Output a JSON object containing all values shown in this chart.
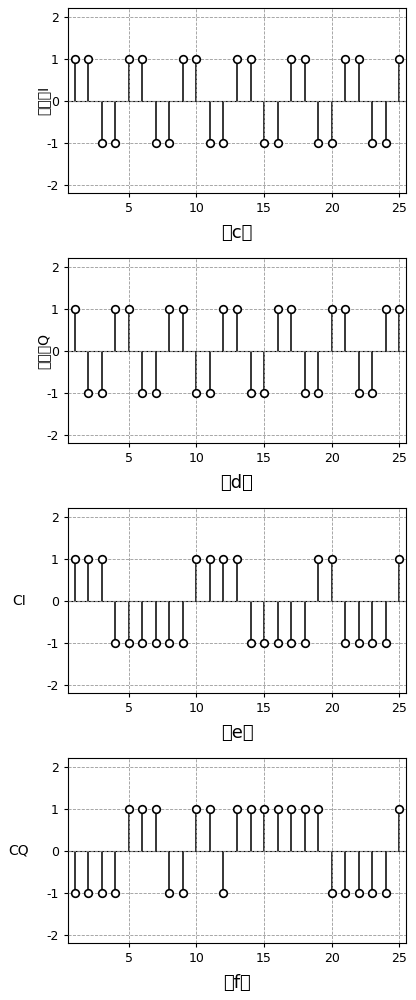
{
  "subplots": [
    {
      "label": "（c）",
      "ylabel": "副载波I",
      "ylabel_rotation": 90,
      "x_vals": [
        1,
        2,
        3,
        4,
        5,
        6,
        7,
        8,
        9,
        10,
        11,
        12,
        13,
        14,
        15,
        16,
        17,
        18,
        19,
        20,
        21,
        22,
        23,
        24,
        25
      ],
      "y_vals": [
        1,
        1,
        -1,
        -1,
        1,
        1,
        -1,
        -1,
        1,
        1,
        -1,
        -1,
        1,
        1,
        -1,
        -1,
        1,
        1,
        -1,
        -1,
        1,
        1,
        -1,
        -1,
        1
      ],
      "ylim": [
        -2.2,
        2.2
      ],
      "yticks": [
        -2,
        -1,
        0,
        1,
        2
      ],
      "ytick_labels": [
        "-2",
        "-1",
        "0",
        "1",
        "2"
      ],
      "xlim": [
        0.5,
        25.5
      ],
      "xticks": [
        5,
        10,
        15,
        20,
        25
      ]
    },
    {
      "label": "（d）",
      "ylabel": "副载波Q",
      "ylabel_rotation": 90,
      "x_vals": [
        1,
        2,
        3,
        4,
        5,
        6,
        7,
        8,
        9,
        10,
        11,
        12,
        13,
        14,
        15,
        16,
        17,
        18,
        19,
        20,
        21,
        22,
        23,
        24,
        25
      ],
      "y_vals": [
        1,
        -1,
        -1,
        1,
        1,
        -1,
        -1,
        1,
        1,
        -1,
        -1,
        1,
        1,
        -1,
        -1,
        1,
        1,
        -1,
        -1,
        1,
        1,
        -1,
        -1,
        1,
        1
      ],
      "ylim": [
        -2.2,
        2.2
      ],
      "yticks": [
        -2,
        -1,
        0,
        1,
        2
      ],
      "ytick_labels": [
        "-2",
        "-1",
        "0",
        "1",
        "2"
      ],
      "xlim": [
        0.5,
        25.5
      ],
      "xticks": [
        5,
        10,
        15,
        20,
        25
      ]
    },
    {
      "label": "（e）",
      "ylabel": "CI",
      "ylabel_rotation": 0,
      "x_vals": [
        1,
        2,
        3,
        4,
        5,
        6,
        7,
        8,
        9,
        10,
        11,
        12,
        13,
        14,
        15,
        16,
        17,
        18,
        19,
        20,
        21,
        22,
        23,
        24,
        25
      ],
      "y_vals": [
        1,
        1,
        1,
        -1,
        -1,
        -1,
        -1,
        -1,
        -1,
        1,
        1,
        1,
        1,
        -1,
        -1,
        -1,
        -1,
        -1,
        1,
        1,
        -1,
        -1,
        -1,
        -1,
        1
      ],
      "ylim": [
        -2.2,
        2.2
      ],
      "yticks": [
        -2,
        -1,
        0,
        1,
        2
      ],
      "ytick_labels": [
        "-2",
        "-1",
        "0",
        "1",
        "2"
      ],
      "xlim": [
        0.5,
        25.5
      ],
      "xticks": [
        5,
        10,
        15,
        20,
        25
      ]
    },
    {
      "label": "（f）",
      "ylabel": "CQ",
      "ylabel_rotation": 0,
      "x_vals": [
        1,
        2,
        3,
        4,
        5,
        6,
        7,
        8,
        9,
        10,
        11,
        12,
        13,
        14,
        15,
        16,
        17,
        18,
        19,
        20,
        21,
        22,
        23,
        24,
        25
      ],
      "y_vals": [
        -1,
        -1,
        -1,
        -1,
        1,
        1,
        1,
        -1,
        -1,
        1,
        1,
        -1,
        1,
        1,
        1,
        1,
        1,
        1,
        1,
        -1,
        -1,
        -1,
        -1,
        -1,
        1
      ],
      "ylim": [
        -2.2,
        2.2
      ],
      "yticks": [
        -2,
        -1,
        0,
        1,
        2
      ],
      "ytick_labels": [
        "-2",
        "-1",
        "0",
        "1",
        "2"
      ],
      "xlim": [
        0.5,
        25.5
      ],
      "xticks": [
        5,
        10,
        15,
        20,
        25
      ]
    }
  ],
  "figure_width": 4.16,
  "figure_height": 10.0,
  "dpi": 100,
  "bg_color": "white",
  "line_color": "black",
  "marker_size": 5.5,
  "marker_color": "white",
  "marker_edge_color": "black",
  "marker_edge_width": 1.2,
  "grid_color": "#999999",
  "grid_style": "--",
  "grid_linewidth": 0.6,
  "label_fontsize": 13,
  "ylabel_fontsize": 10,
  "tick_fontsize": 9,
  "stem_linewidth": 1.1,
  "zero_linewidth": 0.8
}
